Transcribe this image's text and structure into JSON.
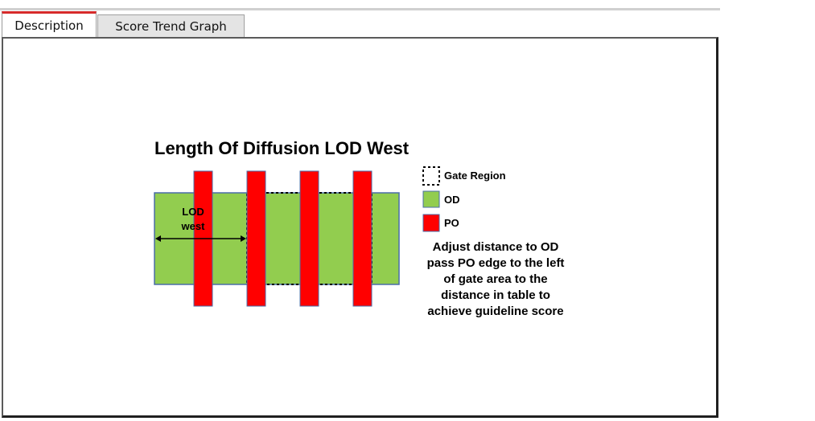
{
  "tabs": [
    {
      "label": "Description",
      "active": true
    },
    {
      "label": "Score Trend Graph",
      "active": false
    }
  ],
  "figure": {
    "title": "Length Of Diffusion LOD West",
    "lod_label_line1": "LOD",
    "lod_label_line2": "west",
    "legend": {
      "gate_region": "Gate Region",
      "od": "OD",
      "po": "PO"
    },
    "note_lines": [
      "Adjust distance to OD",
      "pass PO edge to the left",
      "of gate area to the",
      "distance in table to",
      "achieve guideline score"
    ],
    "colors": {
      "od": "#92cd4f",
      "po": "#ff0000",
      "border": "#4a6da8",
      "tab_accent": "#d62a2a"
    }
  }
}
